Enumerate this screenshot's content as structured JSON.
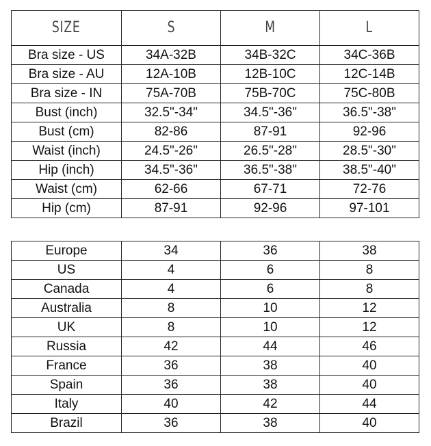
{
  "size_table": {
    "headers": [
      "SIZE",
      "S",
      "M",
      "L"
    ],
    "rows": [
      [
        "Bra size - US",
        "34A-32B",
        "34B-32C",
        "34C-36B"
      ],
      [
        "Bra size - AU",
        "12A-10B",
        "12B-10C",
        "12C-14B"
      ],
      [
        "Bra size - IN",
        "75A-70B",
        "75B-70C",
        "75C-80B"
      ],
      [
        "Bust (inch)",
        "32.5\"-34\"",
        "34.5\"-36\"",
        "36.5\"-38\""
      ],
      [
        "Bust (cm)",
        "82-86",
        "87-91",
        "92-96"
      ],
      [
        "Waist (inch)",
        "24.5\"-26\"",
        "26.5\"-28\"",
        "28.5\"-30\""
      ],
      [
        "Hip (inch)",
        "34.5\"-36\"",
        "36.5\"-38\"",
        "38.5\"-40\""
      ],
      [
        "Waist (cm)",
        "62-66",
        "67-71",
        "72-76"
      ],
      [
        "Hip (cm)",
        "87-91",
        "92-96",
        "97-101"
      ]
    ]
  },
  "country_table": {
    "rows": [
      [
        "Europe",
        "34",
        "36",
        "38"
      ],
      [
        "US",
        "4",
        "6",
        "8"
      ],
      [
        "Canada",
        "4",
        "6",
        "8"
      ],
      [
        "Australia",
        "8",
        "10",
        "12"
      ],
      [
        "UK",
        "8",
        "10",
        "12"
      ],
      [
        "Russia",
        "42",
        "44",
        "46"
      ],
      [
        "France",
        "36",
        "38",
        "40"
      ],
      [
        "Spain",
        "36",
        "38",
        "40"
      ],
      [
        "Italy",
        "40",
        "42",
        "44"
      ],
      [
        "Brazil",
        "36",
        "38",
        "40"
      ]
    ]
  }
}
